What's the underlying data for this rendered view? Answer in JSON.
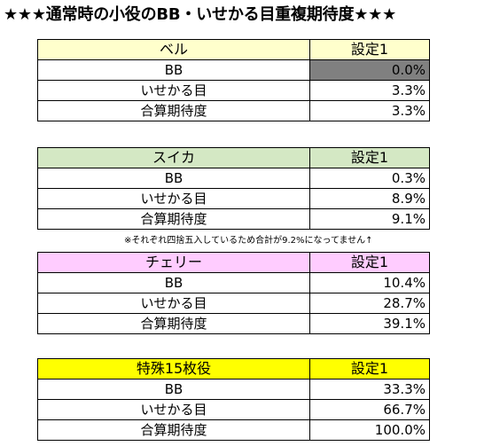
{
  "title": "★★★通常時の小役のBB・いせかる目重複期待度★★★",
  "note": "※それぞれ四捨五入しているため合計が9.2%になってません↑",
  "tables": [
    {
      "name": "ベル",
      "setting": "設定1",
      "color": "#ffffcc",
      "rows": [
        {
          "label": "BB",
          "value": "0.0%"
        },
        {
          "label": "いせかる目",
          "value": "3.3%"
        },
        {
          "label": "合算期待度",
          "value": "3.3%"
        }
      ]
    },
    {
      "name": "スイカ",
      "setting": "設定1",
      "color": "#d4e8c4",
      "rows": [
        {
          "label": "BB",
          "value": "0.3%"
        },
        {
          "label": "いせかる目",
          "value": "8.9%"
        },
        {
          "label": "合算期待度",
          "value": "9.1%"
        }
      ]
    },
    {
      "name": "チェリー",
      "setting": "設定1",
      "color": "#ffccff",
      "rows": [
        {
          "label": "BB",
          "value": "10.4%"
        },
        {
          "label": "いせかる目",
          "value": "28.7%"
        },
        {
          "label": "合算期待度",
          "value": "39.1%"
        }
      ]
    },
    {
      "name": "特殊15枚役",
      "setting": "設定1",
      "color": "#ffff00",
      "rows": [
        {
          "label": "BB",
          "value": "33.3%"
        },
        {
          "label": "いせかる目",
          "value": "66.7%"
        },
        {
          "label": "合算期待度",
          "value": "100.0%"
        }
      ]
    }
  ]
}
